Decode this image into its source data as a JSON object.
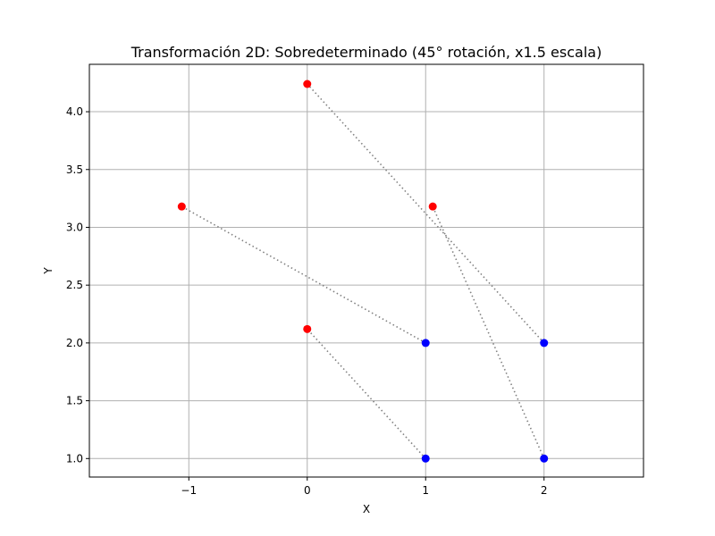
{
  "chart_data": {
    "type": "scatter",
    "title": "Transformación 2D: Sobredeterminado (45° rotación, x1.5 escala)",
    "xlabel": "X",
    "ylabel": "Y",
    "xlim": [
      -1.84,
      2.84
    ],
    "ylim": [
      0.84,
      4.41
    ],
    "xticks": [
      -1,
      0,
      1,
      2
    ],
    "xtick_labels": [
      "−1",
      "0",
      "1",
      "2"
    ],
    "yticks": [
      1.0,
      1.5,
      2.0,
      2.5,
      3.0,
      3.5,
      4.0
    ],
    "ytick_labels": [
      "1.0",
      "1.5",
      "2.0",
      "2.5",
      "3.0",
      "3.5",
      "4.0"
    ],
    "grid": true,
    "series": [
      {
        "color": "#0000ff",
        "points": [
          [
            1,
            1
          ],
          [
            2,
            1
          ],
          [
            2,
            2
          ],
          [
            1,
            2
          ]
        ]
      },
      {
        "color": "#ff0000",
        "points": [
          [
            0,
            2.12
          ],
          [
            1.06,
            3.18
          ],
          [
            0,
            4.24
          ],
          [
            -1.06,
            3.18
          ]
        ]
      }
    ],
    "connections": {
      "color": "#808080",
      "style": "dotted",
      "pairs": [
        [
          [
            1,
            1
          ],
          [
            0,
            2.12
          ]
        ],
        [
          [
            2,
            1
          ],
          [
            1.06,
            3.18
          ]
        ],
        [
          [
            2,
            2
          ],
          [
            0,
            4.24
          ]
        ],
        [
          [
            1,
            2
          ],
          [
            -1.06,
            3.18
          ]
        ]
      ]
    }
  }
}
